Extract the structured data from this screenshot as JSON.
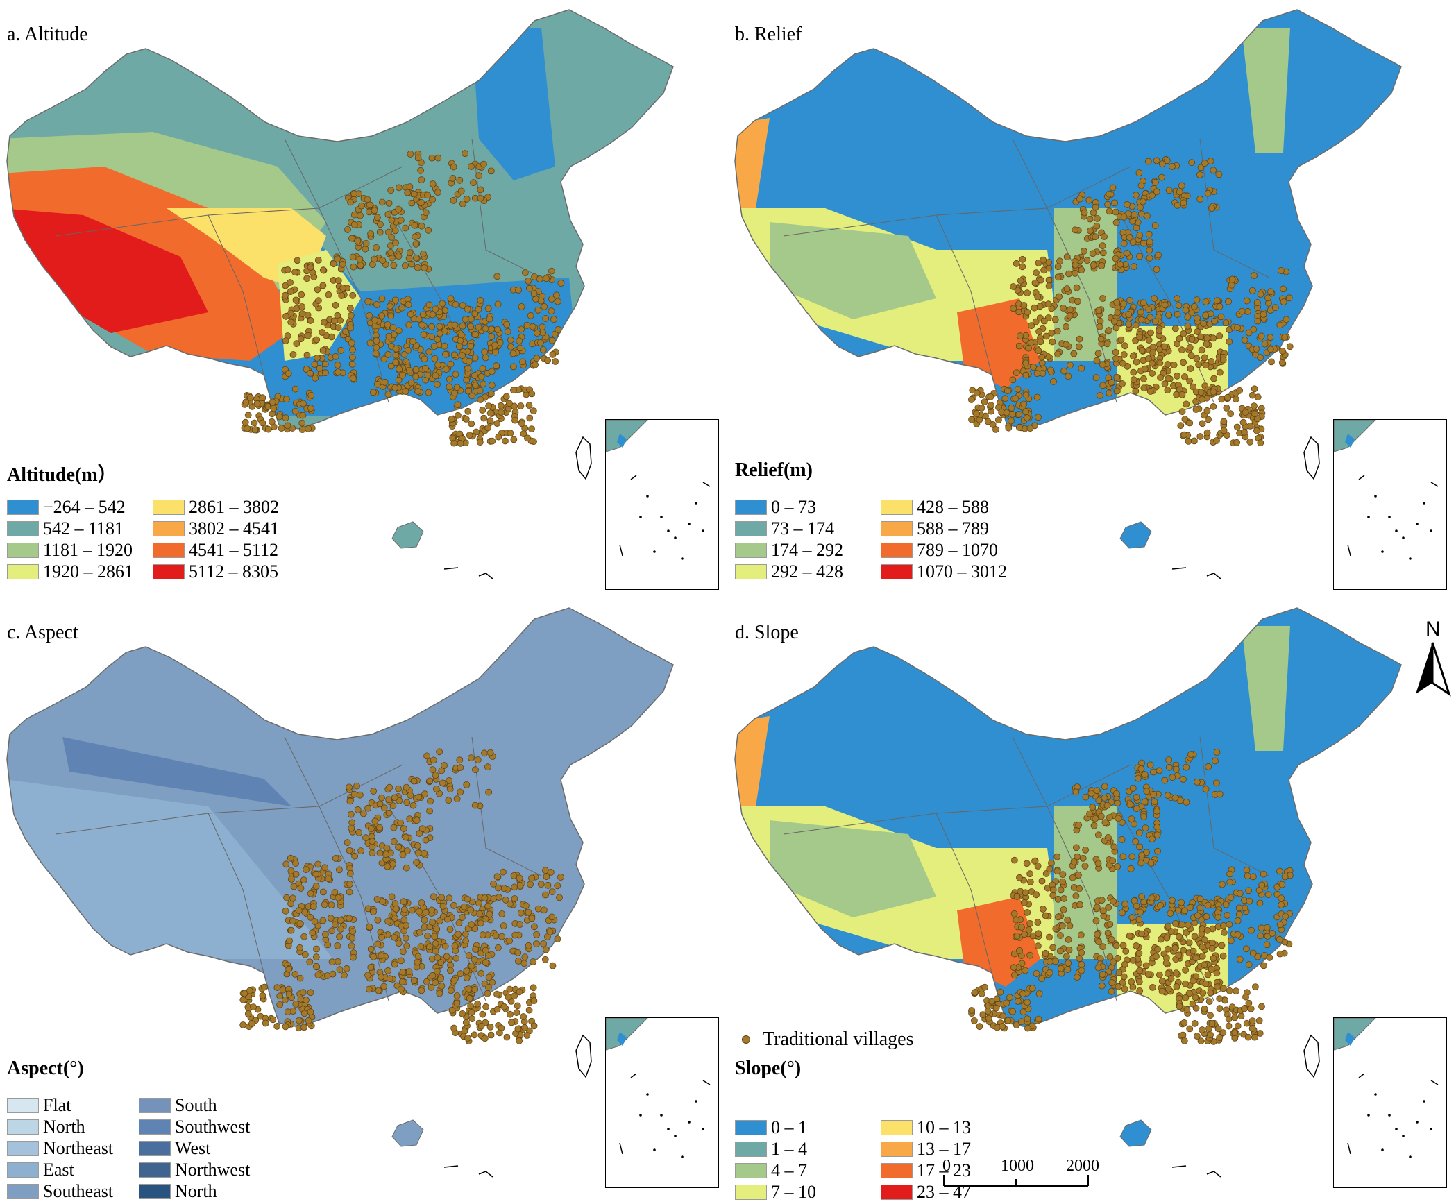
{
  "panels": [
    {
      "id": "a",
      "title": "a. Altitude",
      "legend_title": "Altitude(m）",
      "colors": [
        "#2f8fd0",
        "#6ea9a6",
        "#a4c98a",
        "#e4ee7c",
        "#fbe06a",
        "#f9a847",
        "#f06b2c",
        "#e21b1b"
      ],
      "items": [
        "−264 – 542",
        "542 – 1181",
        "1181 – 1920",
        "1920 – 2861",
        "2861 – 3802",
        "3802 – 4541",
        "4541 – 5112",
        "5112 – 8305"
      ]
    },
    {
      "id": "b",
      "title": "b. Relief",
      "legend_title": "Relief(m)",
      "colors": [
        "#2f8fd0",
        "#6ea9a6",
        "#a4c98a",
        "#e4ee7c",
        "#fbe06a",
        "#f9a847",
        "#f06b2c",
        "#e21b1b"
      ],
      "items": [
        "0 – 73",
        "73 – 174",
        "174 – 292",
        "292 – 428",
        "428 – 588",
        "588 – 789",
        "789 – 1070",
        "1070 – 3012"
      ]
    },
    {
      "id": "c",
      "title": "c. Aspect",
      "legend_title": "Aspect(°)",
      "colors": [
        "#d7e7ef",
        "#bcd6e6",
        "#a4c2db",
        "#8eb0d0",
        "#7f9fc2",
        "#7592bb",
        "#5f84b4",
        "#4a6f9e",
        "#3e648f",
        "#2a5480"
      ],
      "items": [
        "Flat",
        "North",
        "Northeast",
        "East",
        "Southeast",
        "South",
        "Southwest",
        "West",
        "Northwest",
        "North"
      ]
    },
    {
      "id": "d",
      "title": "d. Slope",
      "legend_title": "Slope(°)",
      "colors": [
        "#2f8fd0",
        "#6ea9a6",
        "#a4c98a",
        "#e4ee7c",
        "#fbe06a",
        "#f9a847",
        "#f06b2c",
        "#e21b1b"
      ],
      "items": [
        "0 – 1",
        "1 – 4",
        "4 – 7",
        "7 – 10",
        "10 – 13",
        "13 – 17",
        "17 – 23",
        "23 – 47"
      ]
    }
  ],
  "village_legend_label": "Traditional villages",
  "village_color": "#a47a2a",
  "scale_bar": {
    "labels": [
      "0",
      "1000",
      "2000 km"
    ]
  },
  "north_label": "N"
}
